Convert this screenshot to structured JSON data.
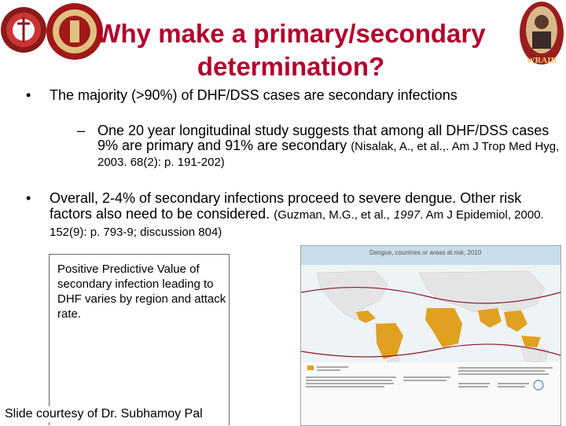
{
  "slide": {
    "title_line1": "Why make a primary/secondary",
    "title_line2": "determination?",
    "bullet_symbol": "•",
    "dash_symbol": "–",
    "bullet1": "The majority (>90%) of DHF/DSS cases are secondary infections",
    "sub_bullet1_text": "One 20 year longitudinal study suggests that among all DHF/DSS cases 9% are primary and 91% are secondary",
    "sub_bullet1_cite": "(Nisalak, A., et al.,. Am J Trop Med Hyg, 2003. 68(2): p. 191-202)",
    "bullet2_text": "Overall, 2-4% of secondary infections proceed to severe dengue. Other risk factors also need to be considered.",
    "bullet2_cite_a": "(Guzman, M.G., et al.,",
    "bullet2_cite_year": "1997",
    "bullet2_cite_b": ". Am J Epidemiol, 2000. 152(9): p. 793-9; discussion 804)",
    "callout": "Positive Predictive Value of secondary infection leading to DHF varies by region and attack rate.",
    "credit": "Slide courtesy of Dr. Subhamoy Pal"
  },
  "figure": {
    "map_title": "Dengue, countries or areas at risk, 2010",
    "colors": {
      "ocean": "#f2f2f2",
      "land": "#e8e8e8",
      "risk": "#e0a020",
      "isotherm": "#8b1a2b"
    }
  },
  "logos": {
    "left_icons": [
      "crest-icon",
      "seal-icon"
    ],
    "right_text": "WRAIR"
  },
  "theme": {
    "title_color": "#b3002d"
  }
}
